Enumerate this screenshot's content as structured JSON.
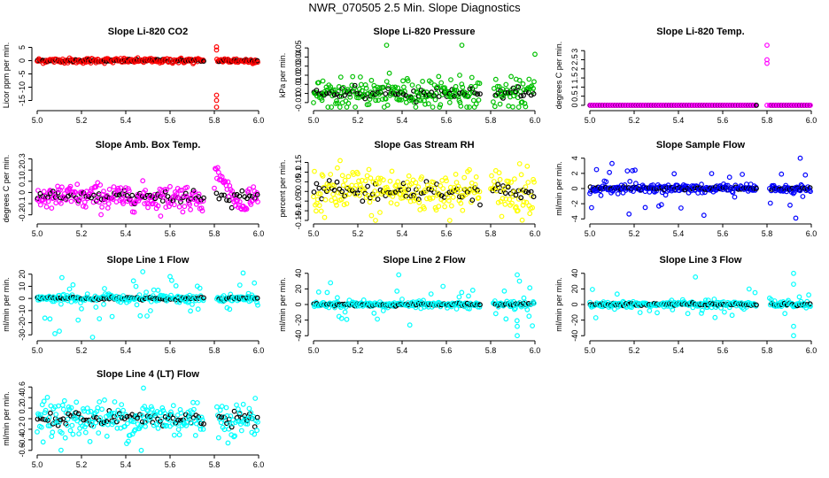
{
  "title": "NWR_070505  2.5 Min. Slope Diagnostics",
  "chart_data": [
    {
      "type": "scatter",
      "title": "Slope Li-820 CO2",
      "ylabel": "Licor ppm per min.",
      "color": "#ff0000",
      "xlim": [
        5.0,
        6.0
      ],
      "ylim": [
        -17.5,
        6.5
      ],
      "yticks": [
        -15,
        -10,
        -5,
        0,
        5
      ],
      "xticks": [
        5.0,
        5.2,
        5.4,
        5.6,
        5.8,
        6.0
      ],
      "gap": [
        5.75,
        5.81
      ],
      "center": 0,
      "noise": 0.5,
      "outliers": [
        [
          5.81,
          5.2
        ],
        [
          5.81,
          4.0
        ],
        [
          5.81,
          -13
        ],
        [
          5.81,
          -15
        ],
        [
          5.81,
          -17.5
        ]
      ]
    },
    {
      "type": "scatter",
      "title": "Slope Li-820 Pressure",
      "ylabel": "kPa per min.",
      "color": "#00c000",
      "xlim": [
        5.0,
        6.0
      ],
      "ylim": [
        -0.015,
        0.055
      ],
      "yticks": [
        -0.01,
        0.0,
        0.01,
        0.02,
        0.03,
        0.04,
        0.05
      ],
      "xticks": [
        5.0,
        5.2,
        5.4,
        5.6,
        5.8,
        6.0
      ],
      "gap": [
        5.75,
        5.81
      ],
      "center": 0.0,
      "noise": 0.008,
      "outliers": [
        [
          5.33,
          0.053
        ],
        [
          5.67,
          0.053
        ],
        [
          6.0,
          0.043
        ],
        [
          5.66,
          0.02
        ],
        [
          5.62,
          0.015
        ]
      ]
    },
    {
      "type": "scatter",
      "title": "Slope Li-820 Temp.",
      "ylabel": "degrees C per min.",
      "color": "#ff00ff",
      "xlim": [
        5.0,
        6.0
      ],
      "ylim": [
        -0.1,
        3.4
      ],
      "yticks": [
        0.0,
        0.5,
        1.0,
        1.5,
        2.0,
        2.5,
        3.0
      ],
      "xticks": [
        5.0,
        5.2,
        5.4,
        5.6,
        5.8,
        6.0
      ],
      "gap": [
        5.75,
        5.81
      ],
      "center": 0,
      "noise": 0.0,
      "style": "flat",
      "outliers": [
        [
          5.8,
          3.3
        ],
        [
          5.8,
          2.5
        ],
        [
          5.8,
          2.3
        ],
        [
          5.8,
          0.0
        ]
      ]
    },
    {
      "type": "scatter",
      "title": "Slope Amb. Box Temp.",
      "ylabel": "degrees C per min.",
      "color": "#ff00ff",
      "xlim": [
        5.0,
        6.0
      ],
      "ylim": [
        -0.25,
        0.32
      ],
      "yticks": [
        -0.2,
        -0.1,
        0.0,
        0.1,
        0.2,
        0.3
      ],
      "xticks": [
        5.0,
        5.2,
        5.4,
        5.6,
        5.8,
        6.0
      ],
      "gap": [
        5.75,
        5.8
      ],
      "center": -0.04,
      "noise": 0.06,
      "style": "bump",
      "outliers": []
    },
    {
      "type": "scatter",
      "title": "Slope Gas Stream RH",
      "ylabel": "percent per min.",
      "color": "#ffff00",
      "xlim": [
        5.0,
        6.0
      ],
      "ylim": [
        -0.15,
        0.18
      ],
      "yticks": [
        -0.15,
        -0.1,
        -0.05,
        0.0,
        0.05,
        0.1,
        0.15
      ],
      "xticks": [
        5.0,
        5.2,
        5.4,
        5.6,
        5.8,
        6.0
      ],
      "gap": [
        5.75,
        5.8
      ],
      "center": 0,
      "noise": 0.06,
      "outliers": [
        [
          5.12,
          0.16
        ],
        [
          5.28,
          -0.15
        ]
      ]
    },
    {
      "type": "scatter",
      "title": "Slope Sample Flow",
      "ylabel": "ml/min per min.",
      "color": "#0000ff",
      "xlim": [
        5.0,
        6.0
      ],
      "ylim": [
        -4.2,
        4.2
      ],
      "yticks": [
        -4,
        -2,
        0,
        2,
        4
      ],
      "xticks": [
        5.0,
        5.2,
        5.4,
        5.6,
        5.8,
        6.0
      ],
      "gap": [
        5.75,
        5.81
      ],
      "center": 0,
      "noise": 0.25,
      "style": "spiky",
      "outliers": [
        [
          5.1,
          3.3
        ],
        [
          5.03,
          2.5
        ],
        [
          5.95,
          4.0
        ],
        [
          5.93,
          -3.9
        ],
        [
          5.25,
          -2.5
        ]
      ]
    },
    {
      "type": "scatter",
      "title": "Slope Line 1 Flow",
      "ylabel": "ml/min per min.",
      "color": "#00ffff",
      "xlim": [
        5.0,
        6.0
      ],
      "ylim": [
        -32,
        22
      ],
      "yticks": [
        -30,
        -20,
        -10,
        0,
        10,
        20
      ],
      "xticks": [
        5.0,
        5.2,
        5.4,
        5.6,
        5.8,
        6.0
      ],
      "gap": [
        5.75,
        5.81
      ],
      "center": 0,
      "noise": 1.5,
      "style": "spiky",
      "outliers": [
        [
          5.93,
          21
        ],
        [
          5.08,
          -29
        ],
        [
          5.1,
          -27
        ]
      ]
    },
    {
      "type": "scatter",
      "title": "Slope Line 2 Flow",
      "ylabel": "ml/min per min.",
      "color": "#00ffff",
      "xlim": [
        5.0,
        6.0
      ],
      "ylim": [
        -42,
        42
      ],
      "yticks": [
        -40,
        -20,
        0,
        20,
        40
      ],
      "xticks": [
        5.0,
        5.2,
        5.4,
        5.6,
        5.8,
        6.0
      ],
      "gap": [
        5.75,
        5.81
      ],
      "center": 0,
      "noise": 2,
      "style": "spiky",
      "outliers": [
        [
          5.92,
          38
        ],
        [
          5.93,
          30
        ],
        [
          5.92,
          -28
        ],
        [
          5.92,
          -40
        ]
      ]
    },
    {
      "type": "scatter",
      "title": "Slope Line 3 Flow",
      "ylabel": "ml/min per min.",
      "color": "#00ffff",
      "xlim": [
        5.0,
        6.0
      ],
      "ylim": [
        -42,
        42
      ],
      "yticks": [
        -40,
        -20,
        0,
        20,
        40
      ],
      "xticks": [
        5.0,
        5.2,
        5.4,
        5.6,
        5.8,
        6.0
      ],
      "gap": [
        5.75,
        5.81
      ],
      "center": 0,
      "noise": 2,
      "style": "spiky",
      "outliers": [
        [
          5.92,
          40
        ],
        [
          5.92,
          26
        ],
        [
          5.92,
          -28
        ],
        [
          5.92,
          -40
        ]
      ]
    },
    {
      "type": "scatter",
      "title": "Slope Line 4 (LT) Flow",
      "ylabel": "ml/min per min.",
      "color": "#00ffff",
      "xlim": [
        5.0,
        6.0
      ],
      "ylim": [
        -0.62,
        0.62
      ],
      "yticks": [
        -0.6,
        -0.4,
        -0.2,
        0.0,
        0.2,
        0.4,
        0.6
      ],
      "xticks": [
        5.0,
        5.2,
        5.4,
        5.6,
        5.8,
        6.0
      ],
      "gap": [
        5.75,
        5.81
      ],
      "center": 0,
      "noise": 0.18,
      "outliers": [
        [
          5.48,
          0.58
        ],
        [
          5.47,
          -0.6
        ]
      ]
    }
  ]
}
